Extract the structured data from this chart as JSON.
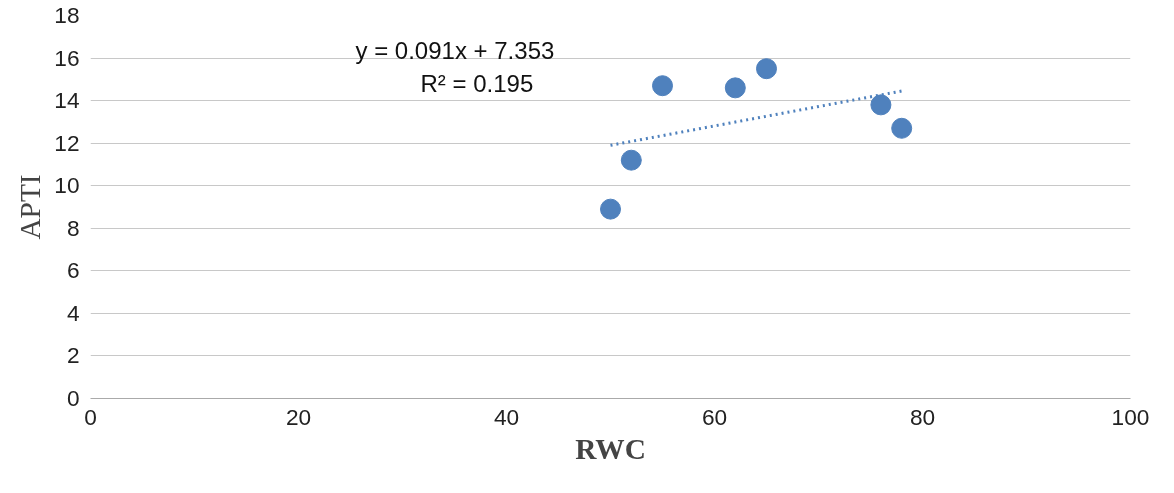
{
  "chart_data": {
    "type": "scatter",
    "xlabel": "RWC",
    "ylabel": "APTI",
    "xlim": [
      0,
      100
    ],
    "ylim": [
      0,
      18
    ],
    "xticks": [
      0,
      20,
      40,
      60,
      80,
      100
    ],
    "yticks": [
      0,
      2,
      4,
      6,
      8,
      10,
      12,
      14,
      16,
      18
    ],
    "grid": "y",
    "series": [
      {
        "color": "#4f81bd",
        "marker": "circle",
        "x": [
          50,
          52,
          55,
          62,
          65,
          76,
          78
        ],
        "values": [
          8.9,
          11.2,
          14.7,
          14.6,
          15.5,
          13.8,
          12.7
        ]
      },
      {
        "type": "line",
        "color": "#4f81bd",
        "line_style": "dotted",
        "x": [
          50,
          78
        ],
        "values": [
          11.9,
          14.45
        ]
      }
    ],
    "annotations": [
      "y = 0.091x + 7.353",
      "R² = 0.195"
    ]
  }
}
